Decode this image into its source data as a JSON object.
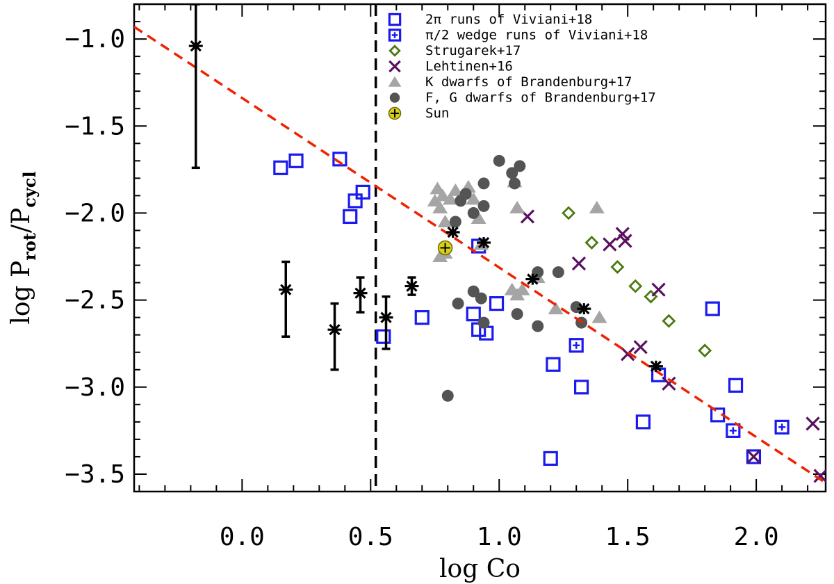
{
  "chart_data": {
    "type": "scatter",
    "xlabel": "log Co",
    "ylabel": "log P",
    "ylabel_sub": "rot",
    "ylabel_sep": "/P",
    "ylabel_sub2": "cycl",
    "xlim": [
      -0.42,
      2.27
    ],
    "ylim": [
      -3.6,
      -0.8
    ],
    "xticks": [
      0.0,
      0.5,
      1.0,
      1.5,
      2.0
    ],
    "xtick_labels": [
      "0.0",
      "0.5",
      "1.0",
      "1.5",
      "2.0"
    ],
    "yticks": [
      -1.0,
      -1.5,
      -2.0,
      -2.5,
      -3.0,
      -3.5
    ],
    "ytick_labels": [
      "−1.0",
      "−1.5",
      "−2.0",
      "−2.5",
      "−3.0",
      "−3.5"
    ],
    "vline_x": 0.52,
    "fit_line": {
      "x": [
        -0.42,
        2.27
      ],
      "y": [
        -0.93,
        -3.55
      ],
      "color": "#ee2200"
    },
    "series": [
      {
        "name": "2π runs of Viviani+18",
        "marker": "square",
        "color": "#1a1aee",
        "x": [
          0.15,
          0.21,
          0.38,
          0.44,
          0.42,
          0.47,
          0.92,
          0.7,
          0.9,
          0.92,
          0.95,
          0.99,
          0.55,
          1.21,
          1.2,
          1.32,
          1.56,
          1.62,
          1.83,
          1.92,
          1.85,
          1.99
        ],
        "y": [
          -1.74,
          -1.7,
          -1.69,
          -1.93,
          -2.02,
          -1.88,
          -2.19,
          -2.6,
          -2.58,
          -2.67,
          -2.69,
          -2.52,
          -2.71,
          -2.87,
          -3.41,
          -3.0,
          -3.2,
          -2.93,
          -2.55,
          -2.99,
          -3.16,
          -3.4
        ]
      },
      {
        "name": "π/2 wedge runs of Viviani+18",
        "marker": "square-plus",
        "color": "#1a1aee",
        "x": [
          1.3,
          1.91,
          2.1
        ],
        "y": [
          -2.76,
          -3.25,
          -3.23
        ]
      },
      {
        "name": "Strugarek+17",
        "marker": "diamond",
        "color": "#4a7a10",
        "x": [
          1.27,
          1.36,
          1.46,
          1.53,
          1.59,
          1.66,
          1.8
        ],
        "y": [
          -2.0,
          -2.17,
          -2.31,
          -2.42,
          -2.48,
          -2.62,
          -2.79
        ]
      },
      {
        "name": "Lehtinen+16",
        "marker": "x",
        "color": "#5a1060",
        "x": [
          1.11,
          1.31,
          1.43,
          1.48,
          1.49,
          1.62,
          1.55,
          1.5,
          1.66,
          1.99,
          2.22,
          2.25
        ],
        "y": [
          -2.02,
          -2.29,
          -2.18,
          -2.12,
          -2.16,
          -2.44,
          -2.77,
          -2.81,
          -2.98,
          -3.4,
          -3.21,
          -3.51
        ]
      },
      {
        "name": "K dwarfs of Brandenburg+17",
        "marker": "triangle",
        "color": "#a5a5a5",
        "x": [
          0.75,
          0.76,
          0.78,
          0.79,
          0.81,
          0.83,
          0.77,
          0.79,
          0.88,
          0.9,
          0.92,
          0.93,
          1.06,
          1.07,
          1.09,
          1.07,
          1.15,
          1.22,
          1.38,
          1.39,
          1.05,
          0.77
        ],
        "y": [
          -1.93,
          -1.86,
          -1.9,
          -2.05,
          -1.92,
          -1.87,
          -1.97,
          -2.23,
          -1.85,
          -1.92,
          -2.03,
          -2.18,
          -1.82,
          -1.97,
          -2.44,
          -2.47,
          -2.37,
          -2.55,
          -1.97,
          -2.6,
          -2.44,
          -2.25
        ]
      },
      {
        "name": "F, G dwarfs of Brandenburg+17",
        "marker": "circle",
        "color": "#545454",
        "x": [
          1.0,
          1.05,
          1.08,
          1.06,
          0.94,
          0.87,
          0.85,
          0.9,
          0.94,
          0.83,
          1.15,
          1.23,
          1.3,
          1.32,
          0.84,
          0.9,
          0.93,
          0.94,
          1.07,
          1.15,
          0.8
        ],
        "y": [
          -1.7,
          -1.77,
          -1.73,
          -1.83,
          -1.83,
          -1.89,
          -1.93,
          -2.0,
          -1.96,
          -2.05,
          -2.34,
          -2.34,
          -2.54,
          -2.63,
          -2.52,
          -2.45,
          -2.49,
          -2.63,
          -2.58,
          -2.65,
          -3.05
        ]
      },
      {
        "name": "Sun",
        "marker": "sun",
        "color": "#d8d018",
        "x": [
          0.79
        ],
        "y": [
          -2.2
        ]
      }
    ],
    "asterisks": {
      "name": "unlabeled black asterisks",
      "color": "#000000",
      "x": [
        -0.18,
        0.17,
        0.36,
        0.46,
        0.56,
        0.66,
        0.82,
        0.94,
        1.13,
        1.33,
        1.61
      ],
      "y": [
        -1.04,
        -2.44,
        -2.67,
        -2.46,
        -2.6,
        -2.42,
        -2.11,
        -2.17,
        -2.38,
        -2.55,
        -2.88
      ],
      "err_low": [
        0.7,
        0.27,
        0.23,
        0.11,
        0.18,
        0.05,
        0.0,
        0.0,
        0.0,
        0.0,
        0.0
      ],
      "err_high": [
        0.24,
        0.16,
        0.15,
        0.09,
        0.12,
        0.05,
        0.0,
        0.0,
        0.0,
        0.0,
        0.0
      ]
    },
    "legend_position": "top-center"
  }
}
